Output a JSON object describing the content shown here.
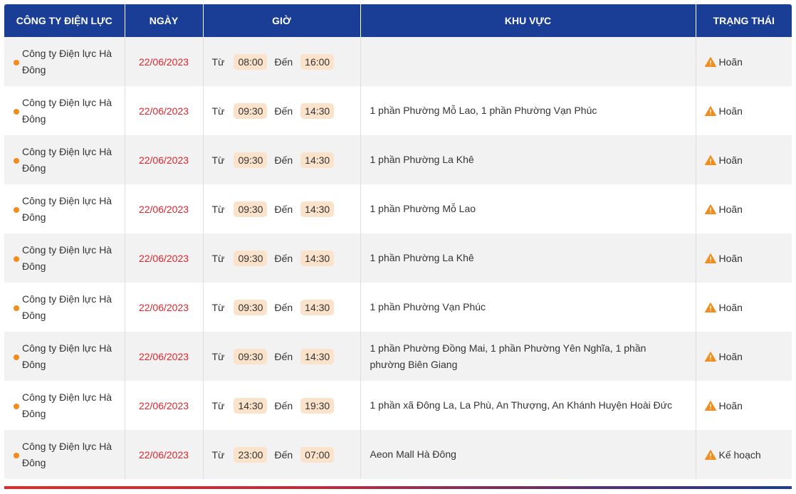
{
  "headers": {
    "company": "CÔNG TY ĐIỆN LỰC",
    "date": "NGÀY",
    "time": "GIỜ",
    "area": "KHU VỰC",
    "status": "TRẠNG THÁI"
  },
  "time_labels": {
    "from": "Từ",
    "to": "Đến"
  },
  "colors": {
    "header_bg": "#1a3e96",
    "date_text": "#e0252d",
    "dot": "#f28c1c",
    "time_pill_bg": "#fbe2cb",
    "warning_icon": "#f28c1c"
  },
  "rows": [
    {
      "company": "Công ty Điện lực Hà Đông",
      "date": "22/06/2023",
      "from": "08:00",
      "to": "16:00",
      "area": "",
      "status": "Hoãn",
      "status_icon": "warning-triangle-icon"
    },
    {
      "company": "Công ty Điện lực Hà Đông",
      "date": "22/06/2023",
      "from": "09:30",
      "to": "14:30",
      "area": "1 phần Phường Mỗ Lao, 1 phần Phường Vạn Phúc",
      "status": "Hoãn",
      "status_icon": "warning-triangle-icon"
    },
    {
      "company": "Công ty Điện lực Hà Đông",
      "date": "22/06/2023",
      "from": "09:30",
      "to": "14:30",
      "area": "1 phần Phường La Khê",
      "status": "Hoãn",
      "status_icon": "warning-triangle-icon"
    },
    {
      "company": "Công ty Điện lực Hà Đông",
      "date": "22/06/2023",
      "from": "09:30",
      "to": "14:30",
      "area": "1 phần Phường Mỗ Lao",
      "status": "Hoãn",
      "status_icon": "warning-triangle-icon"
    },
    {
      "company": "Công ty Điện lực Hà Đông",
      "date": "22/06/2023",
      "from": "09:30",
      "to": "14:30",
      "area": "1 phần Phường La Khê",
      "status": "Hoãn",
      "status_icon": "warning-triangle-icon"
    },
    {
      "company": "Công ty Điện lực Hà Đông",
      "date": "22/06/2023",
      "from": "09:30",
      "to": "14:30",
      "area": "1 phần Phường Vạn Phúc",
      "status": "Hoãn",
      "status_icon": "warning-triangle-icon"
    },
    {
      "company": "Công ty Điện lực Hà Đông",
      "date": "22/06/2023",
      "from": "09:30",
      "to": "14:30",
      "area": "1 phần Phường Đồng Mai, 1 phần Phường Yên Nghĩa, 1 phần phường Biên Giang",
      "status": "Hoãn",
      "status_icon": "warning-triangle-icon"
    },
    {
      "company": "Công ty Điện lực Hà Đông",
      "date": "22/06/2023",
      "from": "14:30",
      "to": "19:30",
      "area": "1 phần xã Đông La, La Phù, An Thượng, An Khánh Huyện Hoài Đức",
      "status": "Hoãn",
      "status_icon": "warning-triangle-icon"
    },
    {
      "company": "Công ty Điện lực Hà Đông",
      "date": "22/06/2023",
      "from": "23:00",
      "to": "07:00",
      "area": "Aeon Mall Hà Đông",
      "status": "Kế hoạch",
      "status_icon": "warning-triangle-icon"
    }
  ]
}
